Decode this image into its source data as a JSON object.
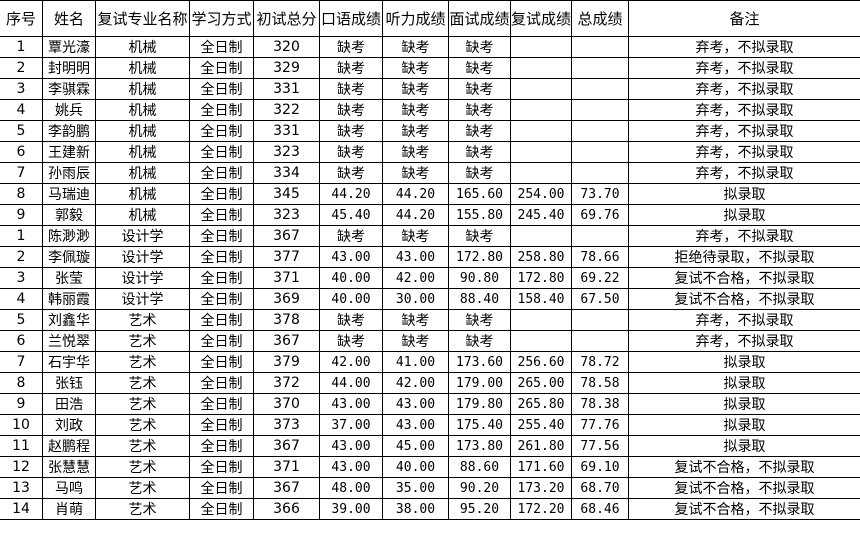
{
  "headers": [
    "序号",
    "姓名",
    "复试专业名称",
    "学习方式",
    "初试总分",
    "口语成绩",
    "听力成绩",
    "面试成绩",
    "复试成绩",
    "总成绩",
    "备注"
  ],
  "rows": [
    [
      "1",
      "覃光濠",
      "机械",
      "全日制",
      "320",
      "缺考",
      "缺考",
      "缺考",
      "",
      "",
      "弃考，不拟录取"
    ],
    [
      "2",
      "封明明",
      "机械",
      "全日制",
      "329",
      "缺考",
      "缺考",
      "缺考",
      "",
      "",
      "弃考，不拟录取"
    ],
    [
      "3",
      "李骐霖",
      "机械",
      "全日制",
      "331",
      "缺考",
      "缺考",
      "缺考",
      "",
      "",
      "弃考，不拟录取"
    ],
    [
      "4",
      "姚兵",
      "机械",
      "全日制",
      "322",
      "缺考",
      "缺考",
      "缺考",
      "",
      "",
      "弃考，不拟录取"
    ],
    [
      "5",
      "李韵鹏",
      "机械",
      "全日制",
      "331",
      "缺考",
      "缺考",
      "缺考",
      "",
      "",
      "弃考，不拟录取"
    ],
    [
      "6",
      "王建新",
      "机械",
      "全日制",
      "323",
      "缺考",
      "缺考",
      "缺考",
      "",
      "",
      "弃考，不拟录取"
    ],
    [
      "7",
      "孙雨辰",
      "机械",
      "全日制",
      "334",
      "缺考",
      "缺考",
      "缺考",
      "",
      "",
      "弃考，不拟录取"
    ],
    [
      "8",
      "马瑞迪",
      "机械",
      "全日制",
      "345",
      "44.20",
      "44.20",
      "165.60",
      "254.00",
      "73.70",
      "拟录取"
    ],
    [
      "9",
      "郭毅",
      "机械",
      "全日制",
      "323",
      "45.40",
      "44.20",
      "155.80",
      "245.40",
      "69.76",
      "拟录取"
    ],
    [
      "1",
      "陈渺渺",
      "设计学",
      "全日制",
      "367",
      "缺考",
      "缺考",
      "缺考",
      "",
      "",
      "弃考，不拟录取"
    ],
    [
      "2",
      "李佩璇",
      "设计学",
      "全日制",
      "377",
      "43.00",
      "43.00",
      "172.80",
      "258.80",
      "78.66",
      "拒绝待录取，不拟录取"
    ],
    [
      "3",
      "张莹",
      "设计学",
      "全日制",
      "371",
      "40.00",
      "42.00",
      "90.80",
      "172.80",
      "69.22",
      "复试不合格，不拟录取"
    ],
    [
      "4",
      "韩丽霞",
      "设计学",
      "全日制",
      "369",
      "40.00",
      "30.00",
      "88.40",
      "158.40",
      "67.50",
      "复试不合格，不拟录取"
    ],
    [
      "5",
      "刘鑫华",
      "艺术",
      "全日制",
      "378",
      "缺考",
      "缺考",
      "缺考",
      "",
      "",
      "弃考，不拟录取"
    ],
    [
      "6",
      "兰悦翠",
      "艺术",
      "全日制",
      "367",
      "缺考",
      "缺考",
      "缺考",
      "",
      "",
      "弃考，不拟录取"
    ],
    [
      "7",
      "石宇华",
      "艺术",
      "全日制",
      "379",
      "42.00",
      "41.00",
      "173.60",
      "256.60",
      "78.72",
      "拟录取"
    ],
    [
      "8",
      "张钰",
      "艺术",
      "全日制",
      "372",
      "44.00",
      "42.00",
      "179.00",
      "265.00",
      "78.58",
      "拟录取"
    ],
    [
      "9",
      "田浩",
      "艺术",
      "全日制",
      "370",
      "43.00",
      "43.00",
      "179.80",
      "265.80",
      "78.38",
      "拟录取"
    ],
    [
      "10",
      "刘政",
      "艺术",
      "全日制",
      "373",
      "37.00",
      "43.00",
      "175.40",
      "255.40",
      "77.76",
      "拟录取"
    ],
    [
      "11",
      "赵鹏程",
      "艺术",
      "全日制",
      "367",
      "43.00",
      "45.00",
      "173.80",
      "261.80",
      "77.56",
      "拟录取"
    ],
    [
      "12",
      "张慧慧",
      "艺术",
      "全日制",
      "371",
      "43.00",
      "40.00",
      "88.60",
      "171.60",
      "69.10",
      "复试不合格，不拟录取"
    ],
    [
      "13",
      "马鸣",
      "艺术",
      "全日制",
      "367",
      "48.00",
      "35.00",
      "90.20",
      "173.20",
      "68.70",
      "复试不合格，不拟录取"
    ],
    [
      "14",
      "肖萌",
      "艺术",
      "全日制",
      "366",
      "39.00",
      "38.00",
      "95.20",
      "172.20",
      "68.46",
      "复试不合格，不拟录取"
    ]
  ]
}
